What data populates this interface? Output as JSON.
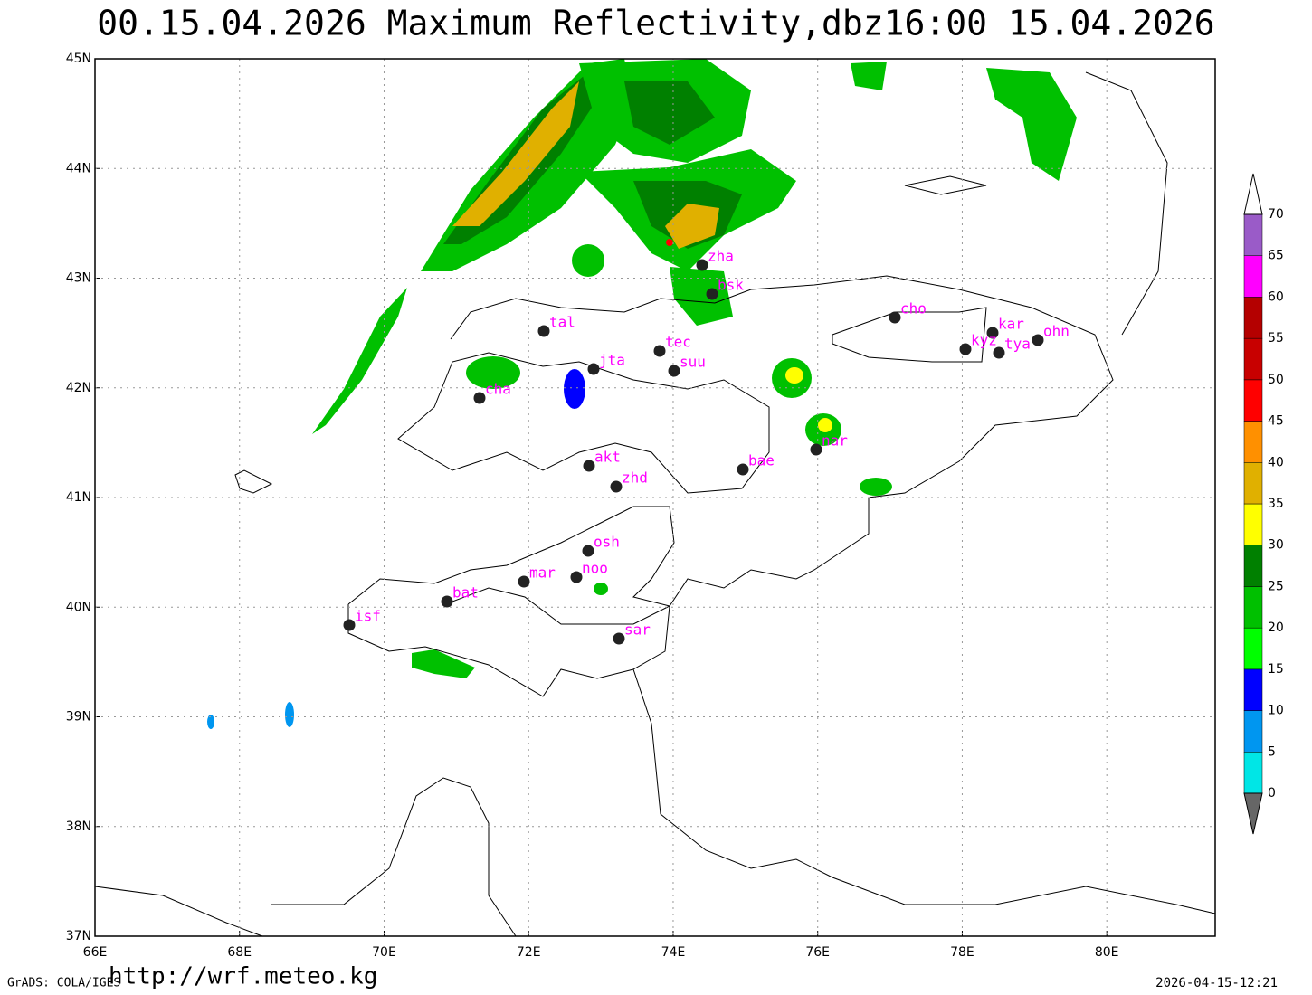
{
  "title": "00.15.04.2026  Maximum  Reflectivity,dbz16:00  15.04.2026",
  "map": {
    "lon_ticks": [
      {
        "value": 66,
        "label": "66E"
      },
      {
        "value": 68,
        "label": "68E"
      },
      {
        "value": 70,
        "label": "70E"
      },
      {
        "value": 72,
        "label": "72E"
      },
      {
        "value": 74,
        "label": "74E"
      },
      {
        "value": 76,
        "label": "76E"
      },
      {
        "value": 78,
        "label": "78E"
      },
      {
        "value": 80,
        "label": "80E"
      }
    ],
    "lat_ticks": [
      {
        "value": 37,
        "label": "37N"
      },
      {
        "value": 38,
        "label": "38N"
      },
      {
        "value": 39,
        "label": "39N"
      },
      {
        "value": 40,
        "label": "40N"
      },
      {
        "value": 41,
        "label": "41N"
      },
      {
        "value": 42,
        "label": "42N"
      },
      {
        "value": 43,
        "label": "43N"
      },
      {
        "value": 44,
        "label": "44N"
      },
      {
        "value": 45,
        "label": "45N"
      }
    ],
    "lon_range": [
      66,
      81.5
    ],
    "lat_range": [
      37,
      45
    ],
    "grid": true,
    "stations": [
      "zha",
      "bsk",
      "tal",
      "tec",
      "jta",
      "suu",
      "cha",
      "cho",
      "kar",
      "kyz",
      "tya",
      "ohn",
      "akt",
      "zhd",
      "bae",
      "nar",
      "osh",
      "mar",
      "noo",
      "bat",
      "isf",
      "sar"
    ]
  },
  "colorbar": {
    "levels": [
      0,
      5,
      10,
      15,
      20,
      25,
      30,
      35,
      40,
      45,
      50,
      55,
      60,
      65,
      70
    ],
    "colors": [
      "#00e6e6",
      "#0096f0",
      "#0000ff",
      "#00ff00",
      "#00c000",
      "#008000",
      "#ffff00",
      "#e0b000",
      "#ff9000",
      "#ff0000",
      "#c80000",
      "#b40000",
      "#ff00ff",
      "#9a5bc8"
    ]
  },
  "footer": {
    "software": "GrADS: COLA/IGES",
    "url": "http://wrf.meteo.kg",
    "timestamp": "2026-04-15-12:21"
  }
}
